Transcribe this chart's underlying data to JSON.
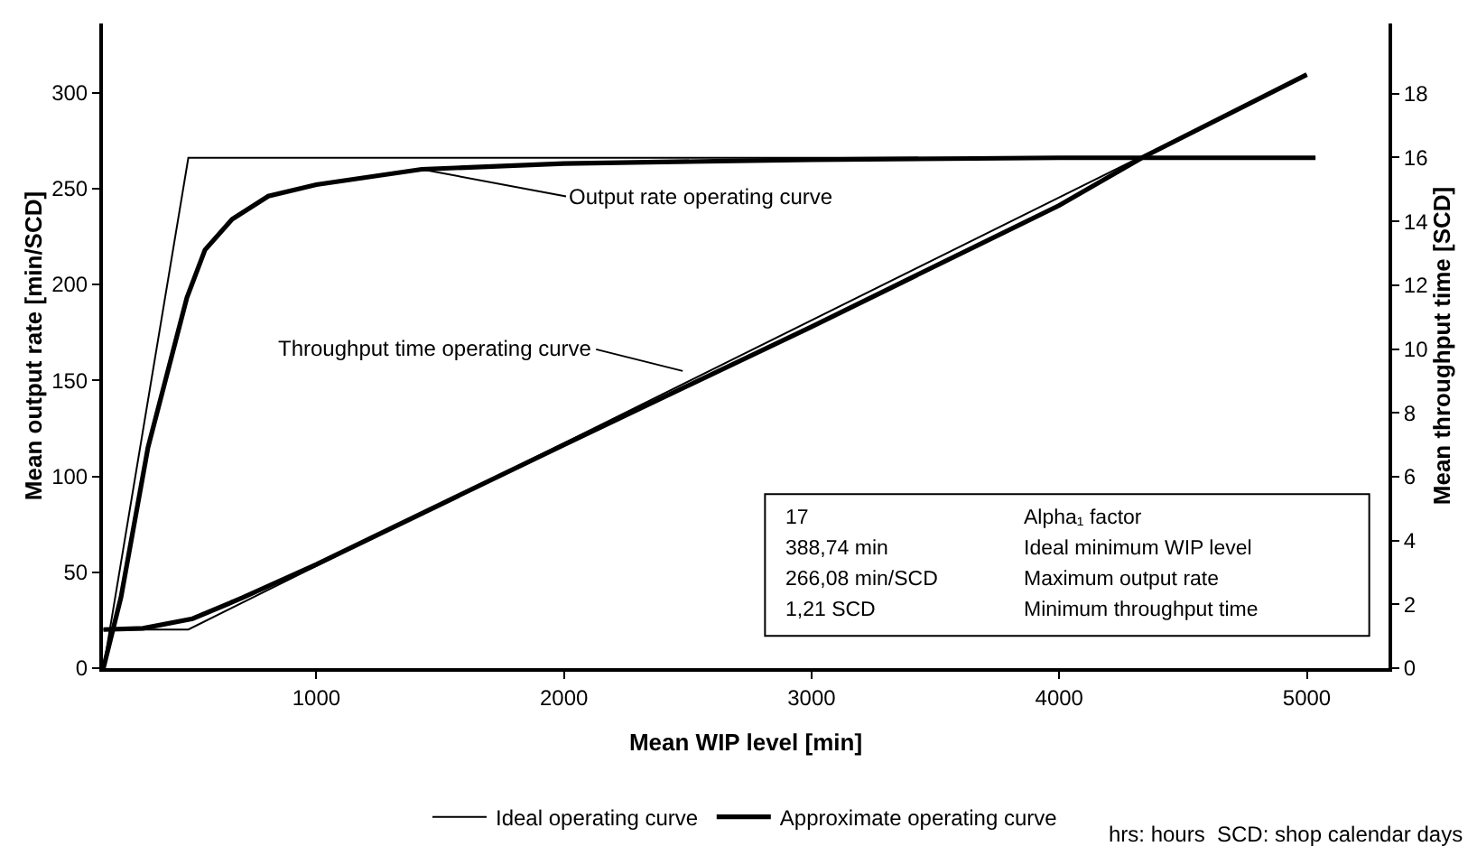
{
  "chart_data": {
    "type": "line",
    "xlabel": "Mean WIP level [min]",
    "ylabel": "Mean output rate [min/SCD]",
    "y2label": "Mean throughput time [SCD]",
    "xlim": [
      138,
      5330
    ],
    "xticks": [
      1000,
      2000,
      3000,
      4000,
      5000
    ],
    "ylim": [
      0,
      336
    ],
    "yticks": [
      0,
      50,
      100,
      150,
      200,
      250,
      300
    ],
    "y2lim": [
      0,
      20.2
    ],
    "y2ticks": [
      0,
      2,
      4,
      6,
      8,
      10,
      12,
      14,
      16,
      18
    ],
    "grid": false,
    "legend": "bottom",
    "marker": "none",
    "line_style": "solid",
    "series": [
      {
        "name": "Ideal operating curve",
        "color": "#000000",
        "x": [
          140,
          483,
          5035
        ],
        "values": [
          0,
          266,
          266
        ]
      },
      {
        "name": "Approximate operating curve",
        "color": "#000000",
        "x": [
          140,
          211,
          320,
          477,
          550,
          660,
          806,
          1000,
          1425,
          2000,
          3000,
          4000,
          5035
        ],
        "values": [
          0,
          37,
          115,
          193,
          218,
          234,
          246,
          252,
          260,
          263,
          265,
          266,
          266
        ]
      },
      {
        "color": "#000000",
        "axis": "y2",
        "x": [
          140,
          483,
          5000
        ],
        "values": [
          1.21,
          1.21,
          18.6
        ]
      },
      {
        "color": "#000000",
        "axis": "y2",
        "x": [
          140,
          300,
          500,
          700,
          1000,
          2000,
          3000,
          4000,
          4336,
          5000
        ],
        "values": [
          1.21,
          1.25,
          1.55,
          2.2,
          3.25,
          7.0,
          10.7,
          14.5,
          16,
          18.6
        ]
      }
    ],
    "annotations": [
      {
        "text": "Output rate operating curve",
        "x": 1425,
        "y": 260
      },
      "Throughput time operating curve",
      "17",
      "Alpha₁ factor",
      "388,74 min",
      "Ideal minimum WIP level",
      "266,08 min/SCD",
      "Maximum output rate",
      "1,21 SCD",
      "Minimum throughput time",
      "hrs: hours",
      "SCD: shop calendar days"
    ]
  }
}
